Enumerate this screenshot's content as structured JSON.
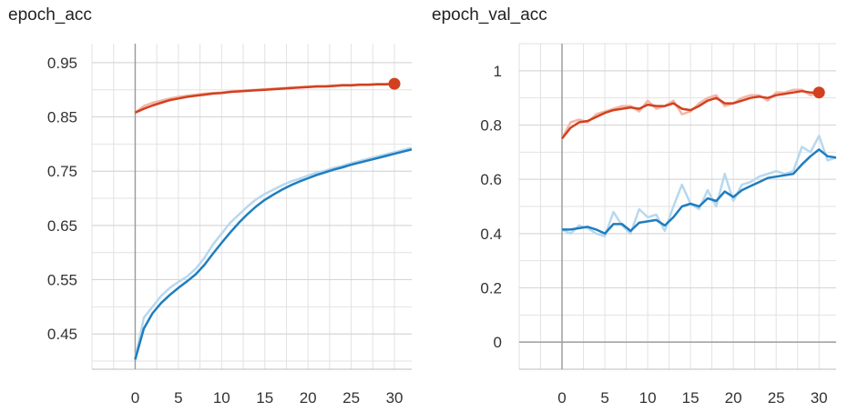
{
  "chart_data": [
    {
      "type": "line",
      "title": "epoch_acc",
      "xlabel": "",
      "ylabel": "",
      "xlim": [
        -5,
        32
      ],
      "ylim": [
        0.385,
        0.985
      ],
      "xticks": [
        0,
        5,
        10,
        15,
        20,
        25,
        30
      ],
      "xtick_labels": [
        "0",
        "5",
        "10",
        "15",
        "20",
        "25",
        "30"
      ],
      "yticks": [
        0.45,
        0.55,
        0.65,
        0.75,
        0.85,
        0.95
      ],
      "ytick_labels": [
        "0.45",
        "0.55",
        "0.65",
        "0.75",
        "0.85",
        "0.95"
      ],
      "grid": true,
      "series": [
        {
          "color": "#d1411f",
          "raw_color": "#f4b6a6",
          "end_marker": true,
          "x": [
            0,
            1,
            2,
            3,
            4,
            5,
            6,
            7,
            8,
            9,
            10,
            11,
            12,
            13,
            14,
            15,
            16,
            17,
            18,
            19,
            20,
            21,
            22,
            23,
            24,
            25,
            26,
            27,
            28,
            29,
            30
          ],
          "smoothed": [
            0.858,
            0.865,
            0.871,
            0.876,
            0.881,
            0.884,
            0.887,
            0.889,
            0.891,
            0.893,
            0.894,
            0.896,
            0.897,
            0.898,
            0.899,
            0.9,
            0.901,
            0.902,
            0.903,
            0.904,
            0.905,
            0.906,
            0.906,
            0.907,
            0.908,
            0.908,
            0.909,
            0.909,
            0.91,
            0.91,
            0.911
          ],
          "raw": [
            0.858,
            0.87,
            0.876,
            0.88,
            0.884,
            0.887,
            0.889,
            0.891,
            0.893,
            0.894,
            0.895,
            0.897,
            0.898,
            0.899,
            0.9,
            0.901,
            0.902,
            0.903,
            0.904,
            0.905,
            0.906,
            0.907,
            0.907,
            0.908,
            0.909,
            0.909,
            0.91,
            0.91,
            0.911,
            0.911,
            0.912
          ]
        },
        {
          "color": "#1f7dbf",
          "raw_color": "#b7d8ef",
          "end_marker": false,
          "x": [
            0,
            1,
            2,
            3,
            4,
            5,
            6,
            7,
            8,
            9,
            10,
            11,
            12,
            13,
            14,
            15,
            16,
            17,
            18,
            19,
            20,
            21,
            22,
            23,
            24,
            25,
            26,
            27,
            28,
            29,
            30,
            31,
            32
          ],
          "smoothed": [
            0.403,
            0.46,
            0.488,
            0.507,
            0.522,
            0.535,
            0.547,
            0.56,
            0.577,
            0.598,
            0.618,
            0.637,
            0.655,
            0.671,
            0.685,
            0.697,
            0.707,
            0.716,
            0.724,
            0.731,
            0.737,
            0.743,
            0.748,
            0.753,
            0.757,
            0.762,
            0.766,
            0.77,
            0.774,
            0.778,
            0.782,
            0.786,
            0.79
          ],
          "raw": [
            0.403,
            0.48,
            0.5,
            0.52,
            0.535,
            0.546,
            0.556,
            0.57,
            0.59,
            0.615,
            0.635,
            0.655,
            0.67,
            0.685,
            0.698,
            0.708,
            0.716,
            0.724,
            0.731,
            0.736,
            0.742,
            0.747,
            0.751,
            0.756,
            0.76,
            0.765,
            0.769,
            0.773,
            0.777,
            0.781,
            0.785,
            0.789,
            0.793
          ]
        }
      ]
    },
    {
      "type": "line",
      "title": "epoch_val_acc",
      "xlabel": "",
      "ylabel": "",
      "xlim": [
        -5,
        32
      ],
      "ylim": [
        -0.1,
        1.1
      ],
      "xticks": [
        0,
        5,
        10,
        15,
        20,
        25,
        30
      ],
      "xtick_labels": [
        "0",
        "5",
        "10",
        "15",
        "20",
        "25",
        "30"
      ],
      "yticks": [
        0,
        0.2,
        0.4,
        0.6,
        0.8,
        1
      ],
      "ytick_labels": [
        "0",
        "0.2",
        "0.4",
        "0.6",
        "0.8",
        "1"
      ],
      "grid": true,
      "series": [
        {
          "color": "#d1411f",
          "raw_color": "#f4b6a6",
          "end_marker": true,
          "x": [
            0,
            1,
            2,
            3,
            4,
            5,
            6,
            7,
            8,
            9,
            10,
            11,
            12,
            13,
            14,
            15,
            16,
            17,
            18,
            19,
            20,
            21,
            22,
            23,
            24,
            25,
            26,
            27,
            28,
            29,
            30
          ],
          "smoothed": [
            0.75,
            0.79,
            0.81,
            0.815,
            0.83,
            0.845,
            0.855,
            0.86,
            0.865,
            0.86,
            0.875,
            0.87,
            0.87,
            0.88,
            0.86,
            0.855,
            0.87,
            0.89,
            0.9,
            0.88,
            0.88,
            0.89,
            0.9,
            0.905,
            0.9,
            0.91,
            0.915,
            0.92,
            0.925,
            0.92,
            0.92
          ],
          "raw": [
            0.75,
            0.81,
            0.82,
            0.81,
            0.84,
            0.85,
            0.86,
            0.87,
            0.87,
            0.85,
            0.89,
            0.86,
            0.87,
            0.89,
            0.84,
            0.85,
            0.88,
            0.9,
            0.91,
            0.87,
            0.88,
            0.9,
            0.91,
            0.91,
            0.89,
            0.92,
            0.92,
            0.93,
            0.93,
            0.91,
            0.92
          ]
        },
        {
          "color": "#1f7dbf",
          "raw_color": "#b7d8ef",
          "end_marker": false,
          "x": [
            0,
            1,
            2,
            3,
            4,
            5,
            6,
            7,
            8,
            9,
            10,
            11,
            12,
            13,
            14,
            15,
            16,
            17,
            18,
            19,
            20,
            21,
            22,
            23,
            24,
            25,
            26,
            27,
            28,
            29,
            30,
            31,
            32
          ],
          "smoothed": [
            0.415,
            0.415,
            0.42,
            0.425,
            0.415,
            0.4,
            0.435,
            0.435,
            0.41,
            0.44,
            0.445,
            0.45,
            0.43,
            0.46,
            0.5,
            0.51,
            0.5,
            0.53,
            0.52,
            0.555,
            0.535,
            0.56,
            0.575,
            0.59,
            0.605,
            0.61,
            0.615,
            0.62,
            0.655,
            0.685,
            0.71,
            0.685,
            0.68
          ],
          "raw": [
            0.415,
            0.4,
            0.43,
            0.42,
            0.4,
            0.39,
            0.48,
            0.43,
            0.4,
            0.49,
            0.46,
            0.47,
            0.41,
            0.5,
            0.58,
            0.51,
            0.49,
            0.56,
            0.5,
            0.62,
            0.52,
            0.58,
            0.59,
            0.61,
            0.62,
            0.63,
            0.62,
            0.63,
            0.72,
            0.7,
            0.76,
            0.67,
            0.68
          ]
        }
      ]
    }
  ]
}
